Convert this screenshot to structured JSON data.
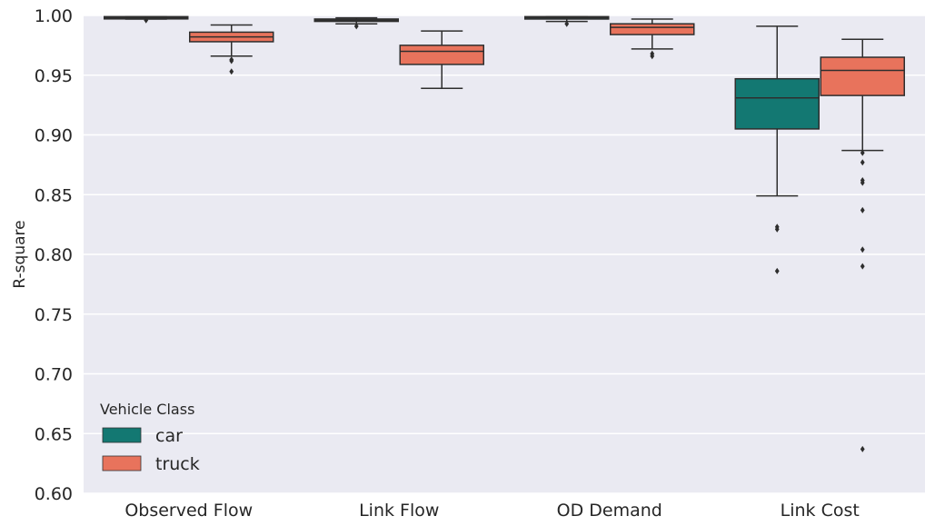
{
  "chart_data": {
    "type": "box",
    "ylabel": "R-square",
    "xlabel": "",
    "ylim": [
      0.6,
      1.0
    ],
    "yticks": [
      "0.60",
      "0.65",
      "0.70",
      "0.75",
      "0.80",
      "0.85",
      "0.90",
      "0.95",
      "1.00"
    ],
    "grid": true,
    "categories": [
      "Observed Flow",
      "Link Flow",
      "OD Demand",
      "Link Cost"
    ],
    "legend": {
      "title": "Vehicle Class",
      "placement": "lower-left"
    },
    "series": [
      {
        "name": "car",
        "color": "#137872",
        "boxes": [
          {
            "category": "Observed Flow",
            "whisker_low": 0.997,
            "q1": 0.998,
            "median": 0.998,
            "q3": 0.999,
            "whisker_high": 0.999,
            "outliers": [
              0.996
            ]
          },
          {
            "category": "Link Flow",
            "whisker_low": 0.993,
            "q1": 0.995,
            "median": 0.996,
            "q3": 0.997,
            "whisker_high": 0.998,
            "outliers": [
              0.991
            ]
          },
          {
            "category": "OD Demand",
            "whisker_low": 0.995,
            "q1": 0.997,
            "median": 0.998,
            "q3": 0.999,
            "whisker_high": 0.999,
            "outliers": [
              0.993
            ]
          },
          {
            "category": "Link Cost",
            "whisker_low": 0.849,
            "q1": 0.905,
            "median": 0.931,
            "q3": 0.947,
            "whisker_high": 0.991,
            "outliers": [
              0.823,
              0.821,
              0.786
            ]
          }
        ]
      },
      {
        "name": "truck",
        "color": "#e8735c",
        "boxes": [
          {
            "category": "Observed Flow",
            "whisker_low": 0.966,
            "q1": 0.978,
            "median": 0.982,
            "q3": 0.986,
            "whisker_high": 0.992,
            "outliers": [
              0.963,
              0.962,
              0.953
            ]
          },
          {
            "category": "Link Flow",
            "whisker_low": 0.939,
            "q1": 0.959,
            "median": 0.97,
            "q3": 0.975,
            "whisker_high": 0.987,
            "outliers": []
          },
          {
            "category": "OD Demand",
            "whisker_low": 0.972,
            "q1": 0.984,
            "median": 0.99,
            "q3": 0.993,
            "whisker_high": 0.997,
            "outliers": [
              0.968,
              0.966
            ]
          },
          {
            "category": "Link Cost",
            "whisker_low": 0.887,
            "q1": 0.933,
            "median": 0.954,
            "q3": 0.965,
            "whisker_high": 0.98,
            "outliers": [
              0.885,
              0.877,
              0.862,
              0.86,
              0.837,
              0.804,
              0.79,
              0.637
            ]
          }
        ]
      }
    ]
  }
}
